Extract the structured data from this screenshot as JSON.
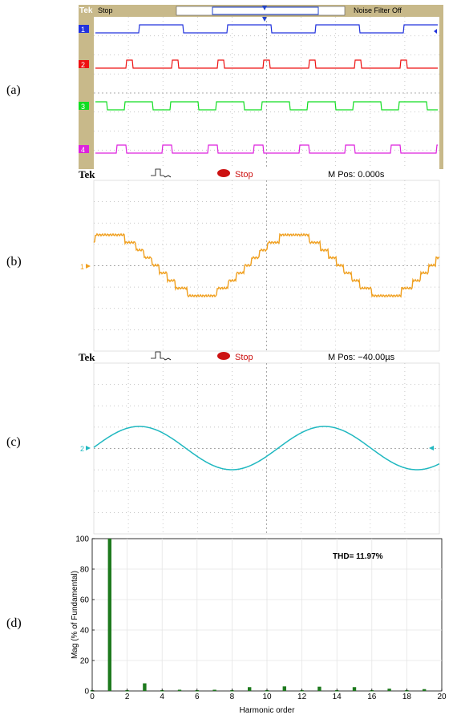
{
  "panel_labels": [
    "(a)",
    "(b)",
    "(c)",
    "(d)"
  ],
  "panel_a": {
    "brand": "Tek",
    "status": "Stop",
    "right_text": "Noise Filter Off",
    "channels": [
      {
        "id": "1",
        "color": "#2233dd"
      },
      {
        "id": "2",
        "color": "#ee1111"
      },
      {
        "id": "3",
        "color": "#11dd22"
      },
      {
        "id": "4",
        "color": "#dd22dd"
      }
    ]
  },
  "panel_b": {
    "brand": "Tek",
    "status": "Stop",
    "mpos": "M Pos: 0.000s",
    "channel": "1",
    "color": "#f0a020"
  },
  "panel_c": {
    "brand": "Tek",
    "status": "Stop",
    "mpos": "M Pos: −40.00µs",
    "channel": "2",
    "color": "#20b8c0"
  },
  "chart_data": {
    "type": "bar",
    "annotation": "THD= 11.97%",
    "xlabel": "Harmonic order",
    "ylabel": "Mag (% of Fundamental)",
    "xlim": [
      0,
      20
    ],
    "ylim": [
      0,
      100
    ],
    "xticks": [
      0,
      2,
      4,
      6,
      8,
      10,
      12,
      14,
      16,
      18,
      20
    ],
    "yticks": [
      0,
      20,
      40,
      60,
      80,
      100
    ],
    "x": [
      0,
      1,
      2,
      3,
      4,
      5,
      6,
      7,
      8,
      9,
      10,
      11,
      12,
      13,
      14,
      15,
      16,
      17,
      18,
      19
    ],
    "values": [
      0.5,
      100,
      0.5,
      5,
      0.5,
      0.8,
      0.5,
      0.8,
      0.5,
      2.5,
      0.5,
      3.0,
      0.5,
      2.8,
      0.5,
      2.5,
      0.5,
      1.5,
      0.5,
      1.2
    ],
    "color": "#1e7a1e",
    "grid": true
  }
}
